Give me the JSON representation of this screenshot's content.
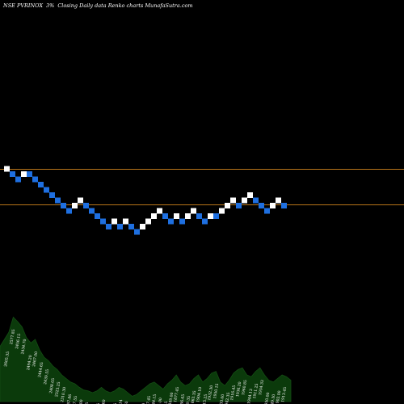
{
  "header": {
    "ticker": "NSE PVRINOX",
    "change": "3%",
    "description": "Closing Daily data  Renko  charts MunafaSutra.com"
  },
  "colors": {
    "background": "#000000",
    "up_brick": "#ffffff",
    "down_brick": "#1e6fe0",
    "reference_line": "#b8741a",
    "volume_fill": "#0b3a0b",
    "volume_stroke": "#144d14"
  },
  "chart_data": {
    "type": "renko",
    "reference_levels": [
      "upper",
      "lower"
    ],
    "bricks": [
      {
        "dir": "up",
        "level": 0
      },
      {
        "dir": "down",
        "level": 1
      },
      {
        "dir": "down",
        "level": 2
      },
      {
        "dir": "up",
        "level": 1
      },
      {
        "dir": "down",
        "level": 1
      },
      {
        "dir": "down",
        "level": 2
      },
      {
        "dir": "down",
        "level": 3
      },
      {
        "dir": "down",
        "level": 4
      },
      {
        "dir": "down",
        "level": 5
      },
      {
        "dir": "down",
        "level": 6
      },
      {
        "dir": "down",
        "level": 7
      },
      {
        "dir": "down",
        "level": 8
      },
      {
        "dir": "up",
        "level": 7
      },
      {
        "dir": "up",
        "level": 6
      },
      {
        "dir": "down",
        "level": 7
      },
      {
        "dir": "down",
        "level": 8
      },
      {
        "dir": "down",
        "level": 9
      },
      {
        "dir": "down",
        "level": 10
      },
      {
        "dir": "down",
        "level": 11
      },
      {
        "dir": "up",
        "level": 10
      },
      {
        "dir": "down",
        "level": 11
      },
      {
        "dir": "up",
        "level": 10
      },
      {
        "dir": "down",
        "level": 11
      },
      {
        "dir": "down",
        "level": 12
      },
      {
        "dir": "up",
        "level": 11
      },
      {
        "dir": "up",
        "level": 10
      },
      {
        "dir": "up",
        "level": 9
      },
      {
        "dir": "up",
        "level": 8
      },
      {
        "dir": "down",
        "level": 9
      },
      {
        "dir": "down",
        "level": 10
      },
      {
        "dir": "up",
        "level": 9
      },
      {
        "dir": "down",
        "level": 10
      },
      {
        "dir": "up",
        "level": 9
      },
      {
        "dir": "up",
        "level": 8
      },
      {
        "dir": "down",
        "level": 9
      },
      {
        "dir": "down",
        "level": 10
      },
      {
        "dir": "up",
        "level": 9
      },
      {
        "dir": "down",
        "level": 9
      },
      {
        "dir": "up",
        "level": 8
      },
      {
        "dir": "up",
        "level": 7
      },
      {
        "dir": "up",
        "level": 6
      },
      {
        "dir": "down",
        "level": 7
      },
      {
        "dir": "up",
        "level": 6
      },
      {
        "dir": "up",
        "level": 5
      },
      {
        "dir": "down",
        "level": 6
      },
      {
        "dir": "down",
        "level": 7
      },
      {
        "dir": "down",
        "level": 8
      },
      {
        "dir": "up",
        "level": 7
      },
      {
        "dir": "up",
        "level": 6
      },
      {
        "dir": "down",
        "level": 7
      }
    ],
    "volume_labels": [
      "2605.35",
      "2577.85",
      "2456.15",
      "2434.70",
      "2494.20",
      "2467.00",
      "2444.65",
      "2439.55",
      "2408.05",
      "2323.25",
      "2310.30",
      "2287.86",
      "2307.55",
      "2198.00",
      "2160.05",
      "2143.90",
      "2049.35",
      "1954.60",
      "1967.65",
      "1944.35",
      "1967.14",
      "1921.60",
      "1904.10",
      "1817.95",
      "1887.80",
      "1877.45",
      "1844.15",
      "1845.00",
      "1862.45",
      "1849.00",
      "1877.45",
      "1866.65",
      "1849.35",
      "1863.35",
      "1904.10",
      "1915.25",
      "1932.30",
      "1950.15",
      "1933.00",
      "1942.35",
      "1916.45",
      "1936.20",
      "1960.85",
      "1944.13",
      "1911.25",
      "1934.33",
      "1950.00",
      "1949.30",
      "1902.00",
      "1913.45"
    ],
    "volume_profile": [
      0.62,
      0.7,
      0.78,
      0.95,
      0.9,
      0.84,
      0.72,
      0.66,
      0.7,
      0.58,
      0.5,
      0.46,
      0.4,
      0.36,
      0.3,
      0.26,
      0.22,
      0.2,
      0.16,
      0.13,
      0.12,
      0.1,
      0.12,
      0.16,
      0.12,
      0.1,
      0.12,
      0.16,
      0.14,
      0.1,
      0.06,
      0.08,
      0.12,
      0.16,
      0.2,
      0.22,
      0.18,
      0.14,
      0.2,
      0.24,
      0.3,
      0.22,
      0.18,
      0.2,
      0.26,
      0.3,
      0.22,
      0.26,
      0.32,
      0.34,
      0.22,
      0.18,
      0.24,
      0.32,
      0.36,
      0.38,
      0.3,
      0.28,
      0.34,
      0.38,
      0.3,
      0.24,
      0.22,
      0.26,
      0.3,
      0.28,
      0.24
    ]
  }
}
